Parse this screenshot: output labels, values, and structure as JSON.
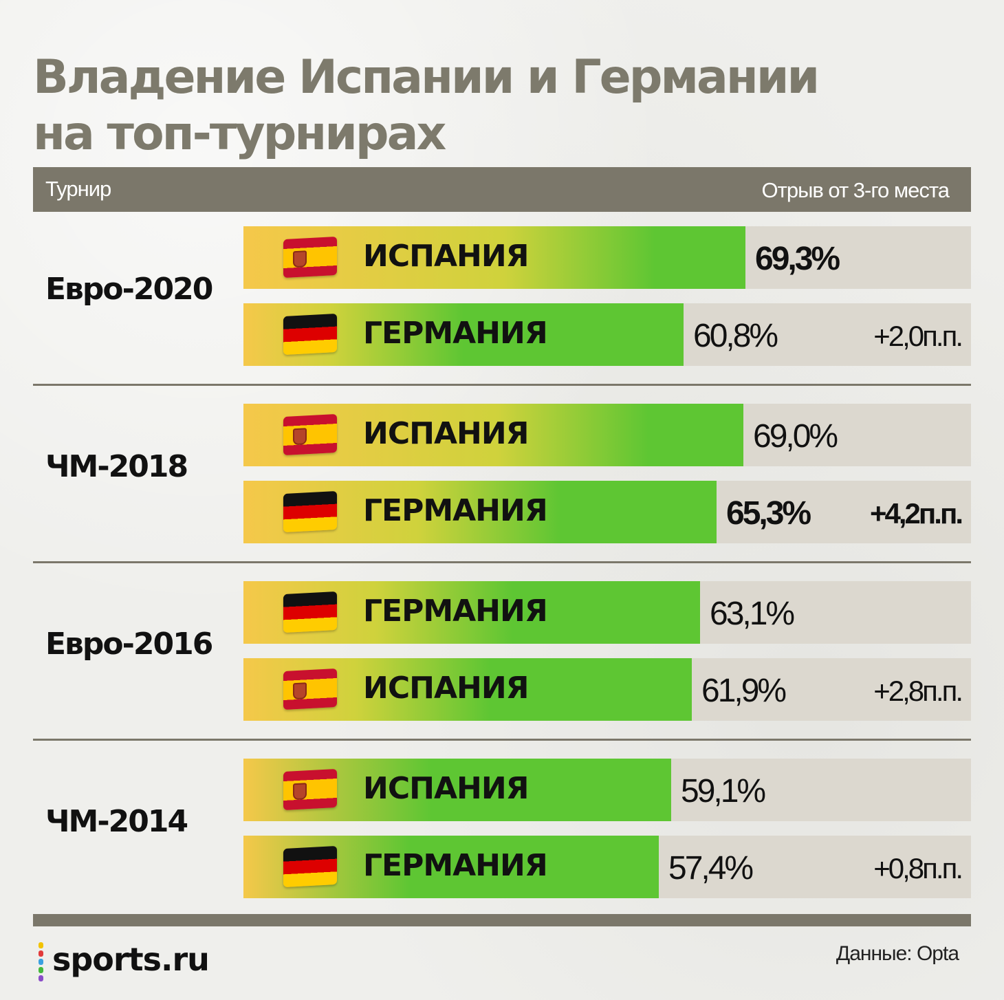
{
  "title": {
    "line1": "Владение Испании и Германии",
    "line2": "на топ-турнирах"
  },
  "header": {
    "left": "Турнир",
    "right": "Отрыв от 3-го места"
  },
  "colors": {
    "header_bg": "#7b776a",
    "track_bg": "#dcd8cf",
    "bar_green": "#5ec633",
    "bar_yellow": "#f5c84a",
    "title_color": "#7d7a6c"
  },
  "chart_data": {
    "type": "bar",
    "groups": [
      {
        "tournament": "Евро-2020",
        "rows": [
          {
            "team": "ИСПАНИЯ",
            "flag": "spain-flag-icon",
            "value": 69.3,
            "value_label": "69,3%",
            "bold": true,
            "gap_label": ""
          },
          {
            "team": "ГЕРМАНИЯ",
            "flag": "germany-flag-icon",
            "value": 60.8,
            "value_label": "60,8%",
            "bold": false,
            "gap_label": "+2,0п.п."
          }
        ]
      },
      {
        "tournament": "ЧМ-2018",
        "rows": [
          {
            "team": "ИСПАНИЯ",
            "flag": "spain-flag-icon",
            "value": 69.0,
            "value_label": "69,0%",
            "bold": false,
            "gap_label": ""
          },
          {
            "team": "ГЕРМАНИЯ",
            "flag": "germany-flag-icon",
            "value": 65.3,
            "value_label": "65,3%",
            "bold": true,
            "gap_label": "+4,2п.п."
          }
        ]
      },
      {
        "tournament": "Евро-2016",
        "rows": [
          {
            "team": "ГЕРМАНИЯ",
            "flag": "germany-flag-icon",
            "value": 63.1,
            "value_label": "63,1%",
            "bold": false,
            "gap_label": ""
          },
          {
            "team": "ИСПАНИЯ",
            "flag": "spain-flag-icon",
            "value": 61.9,
            "value_label": "61,9%",
            "bold": false,
            "gap_label": "+2,8п.п."
          }
        ]
      },
      {
        "tournament": "ЧМ-2014",
        "rows": [
          {
            "team": "ИСПАНИЯ",
            "flag": "spain-flag-icon",
            "value": 59.1,
            "value_label": "59,1%",
            "bold": false,
            "gap_label": ""
          },
          {
            "team": "ГЕРМАНИЯ",
            "flag": "germany-flag-icon",
            "value": 57.4,
            "value_label": "57,4%",
            "bold": false,
            "gap_label": "+0,8п.п."
          }
        ]
      }
    ]
  },
  "footer": {
    "logo": "sports.ru",
    "source": "Данные: Opta"
  }
}
